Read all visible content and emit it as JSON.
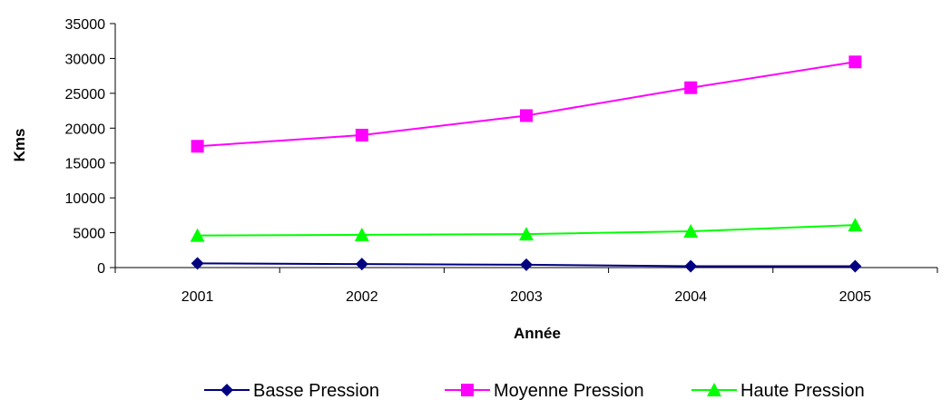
{
  "chart_data": {
    "type": "line",
    "title": "",
    "xlabel": "Année",
    "ylabel": "Kms",
    "categories": [
      "2001",
      "2002",
      "2003",
      "2004",
      "2005"
    ],
    "ylim": [
      0,
      35000
    ],
    "yticks": [
      "0",
      "5000",
      "10000",
      "15000",
      "20000",
      "25000",
      "30000",
      "35000"
    ],
    "grid": false,
    "legend_position": "bottom",
    "series": [
      {
        "name": "Basse Pression",
        "values": [
          600,
          500,
          400,
          200,
          200
        ],
        "color": "#000080",
        "marker": "diamond"
      },
      {
        "name": "Moyenne Pression",
        "values": [
          17400,
          19000,
          21800,
          25800,
          29500
        ],
        "color": "#FF00FF",
        "marker": "square"
      },
      {
        "name": "Haute Pression",
        "values": [
          4600,
          4700,
          4800,
          5200,
          6100
        ],
        "color": "#00FF00",
        "marker": "triangle"
      }
    ]
  }
}
